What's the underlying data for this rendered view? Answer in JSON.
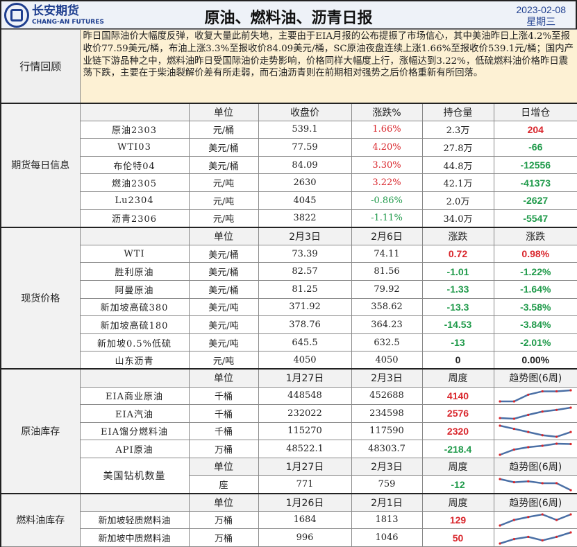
{
  "header": {
    "logo_cn": "长安期货",
    "logo_en": "CHANG-AN FUTURES",
    "title": "原油、燃料油、沥青日报",
    "date": "2023-02-08",
    "weekday": "星期三"
  },
  "review": {
    "label": "行情回顾",
    "text": "昨日国际油价大幅度反弹，收复大量此前失地，主要由于EIA月报的公布提振了市场信心，其中美油昨日上涨4.2%至报收价77.59美元/桶，布油上涨3.3%至报收价84.09美元/桶，SC原油夜盘连续上涨1.66%至报收价539.1元/桶；国内产业链下游品种之中，燃料油昨日受国际油价走势影响，价格同样大幅度上行，涨幅达到3.22%，低硫燃料油价格昨日震荡下跌，主要在于柴油裂解价差有所走弱，而石油沥青则在前期相对强势之后价格重新有所回落。"
  },
  "futures": {
    "label": "期货每日信息",
    "headers": [
      "单位",
      "收盘价",
      "涨跌%",
      "持仓量",
      "日增仓"
    ],
    "rows": [
      [
        "原油2303",
        "元/桶",
        "539.1",
        "1.66%",
        "2.3万",
        "204"
      ],
      [
        "WTI03",
        "美元/桶",
        "77.59",
        "4.20%",
        "27.8万",
        "-66"
      ],
      [
        "布伦特04",
        "美元/桶",
        "84.09",
        "3.30%",
        "44.8万",
        "-12556"
      ],
      [
        "燃油2305",
        "元/吨",
        "2630",
        "3.22%",
        "42.1万",
        "-41373"
      ],
      [
        "Lu2304",
        "元/吨",
        "4045",
        "-0.86%",
        "2.0万",
        "-2627"
      ],
      [
        "沥青2306",
        "元/吨",
        "3822",
        "-1.11%",
        "34.0万",
        "-5547"
      ]
    ]
  },
  "spot": {
    "label": "现货价格",
    "headers": [
      "单位",
      "2月3日",
      "2月6日",
      "涨跌",
      "涨跌"
    ],
    "rows": [
      [
        "WTI",
        "美元/桶",
        "73.39",
        "74.11",
        "0.72",
        "0.98%"
      ],
      [
        "胜利原油",
        "美元/桶",
        "82.57",
        "81.56",
        "-1.01",
        "-1.22%"
      ],
      [
        "阿曼原油",
        "美元/桶",
        "81.25",
        "79.92",
        "-1.33",
        "-1.64%"
      ],
      [
        "新加坡高硫380",
        "美元/吨",
        "371.92",
        "358.62",
        "-13.3",
        "-3.58%"
      ],
      [
        "新加坡高硫180",
        "美元/吨",
        "378.76",
        "364.23",
        "-14.53",
        "-3.84%"
      ],
      [
        "新加坡0.5%低硫",
        "美元/吨",
        "645.5",
        "632.5",
        "-13",
        "-2.01%"
      ],
      [
        "山东沥青",
        "元/吨",
        "4050",
        "4050",
        "0",
        "0.00%"
      ]
    ]
  },
  "crude_stock": {
    "label": "原油库存",
    "headers": [
      "单位",
      "1月27日",
      "2月3日",
      "周度",
      "趋势图(6周)"
    ],
    "rows": [
      [
        "EIA商业原油",
        "千桶",
        "448548",
        "452688",
        "4140"
      ],
      [
        "EIA汽油",
        "千桶",
        "232022",
        "234598",
        "2576"
      ],
      [
        "EIA馏分燃料油",
        "千桶",
        "115270",
        "117590",
        "2320"
      ],
      [
        "API原油",
        "万桶",
        "48522.1",
        "48303.7",
        "-218.4"
      ]
    ],
    "rig": {
      "name": "美国钻机数量",
      "headers": [
        "单位",
        "1月27日",
        "2月3日",
        "周度",
        "趋势图(6周)"
      ],
      "row": [
        "座",
        "771",
        "759",
        "-12"
      ]
    }
  },
  "fuel_stock": {
    "label": "燃料油库存",
    "headers": [
      "单位",
      "1月26日",
      "2月1日",
      "周度",
      "趋势图(6周)"
    ],
    "rows": [
      [
        "新加坡轻质燃料油",
        "万桶",
        "1684",
        "1813",
        "129"
      ],
      [
        "新加坡中质燃料油",
        "万桶",
        "996",
        "1046",
        "50"
      ]
    ]
  },
  "colors": {
    "up": "#d9262c",
    "down": "#1f9a4a",
    "trend_line": "#4a6fa5",
    "trend_marker": "#d9262c"
  }
}
